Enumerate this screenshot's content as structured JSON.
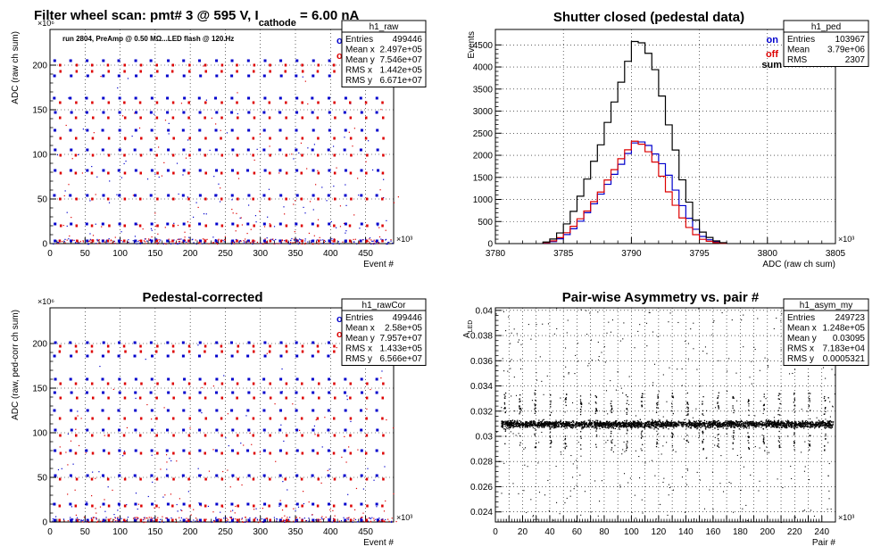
{
  "panels": {
    "tl": {
      "title_parts": {
        "a": "Filter wheel scan: pmt#   3 @   595 V, I",
        "sub": "cathode",
        "b": " = 6.00 nA"
      },
      "note": "run 2804, PreAmp @ 0.50 MΩ...LED flash @  120.Hz",
      "legend": {
        "on": "on",
        "off": "off"
      },
      "stats": {
        "name": "h1_raw",
        "rows": [
          [
            "Entries",
            "499446"
          ],
          [
            "Mean x",
            "2.497e+05"
          ],
          [
            "Mean y",
            "7.546e+07"
          ],
          [
            "RMS x",
            "1.442e+05"
          ],
          [
            "RMS y",
            "6.671e+07"
          ]
        ]
      }
    },
    "tr": {
      "title": "Shutter closed (pedestal data)",
      "legend": {
        "on": "on",
        "off": "off",
        "sum": "sum"
      },
      "stats": {
        "name": "h1_ped",
        "rows": [
          [
            "Entries",
            "103967"
          ],
          [
            "Mean",
            "3.79e+06"
          ],
          [
            "RMS",
            "2307"
          ]
        ]
      }
    },
    "bl": {
      "title": "Pedestal-corrected",
      "legend": {
        "on": "on",
        "off": "off"
      },
      "stats": {
        "name": "h1_rawCor",
        "rows": [
          [
            "Entries",
            "499446"
          ],
          [
            "Mean x",
            "2.58e+05"
          ],
          [
            "Mean y",
            "7.957e+07"
          ],
          [
            "RMS x",
            "1.433e+05"
          ],
          [
            "RMS y",
            "6.566e+07"
          ]
        ]
      }
    },
    "br": {
      "title": "Pair-wise Asymmetry vs. pair #",
      "stats": {
        "name": "h1_asym_my",
        "rows": [
          [
            "Entries",
            "249723"
          ],
          [
            "Mean x",
            "1.248e+05"
          ],
          [
            "Mean y",
            "0.03095"
          ],
          [
            "RMS x",
            "7.183e+04"
          ],
          [
            "RMS y",
            "0.0005321"
          ]
        ]
      }
    }
  },
  "colors": {
    "on": "#0000cc",
    "off": "#dd0000",
    "sum": "#000000",
    "grid": "#000000"
  },
  "chart_data": [
    {
      "type": "scatter",
      "id": "tl",
      "title": "Filter wheel scan: pmt#   3 @   595 V, I cathode = 6.00 nA",
      "xlabel": "Event #",
      "x_exponent": "×10³",
      "ylabel": "ADC (raw ch sum)",
      "y_exponent": "×10⁶",
      "xlim": [
        0,
        490
      ],
      "ylim": [
        0,
        240
      ],
      "x_ticks": [
        0,
        50,
        100,
        150,
        200,
        250,
        300,
        350,
        400,
        450
      ],
      "y_ticks": [
        0,
        50,
        100,
        150,
        200
      ],
      "grid": true,
      "series": [
        {
          "name": "on",
          "levels": [
            3,
            22,
            54,
            82,
            105,
            127,
            147,
            163,
            188,
            205
          ]
        },
        {
          "name": "off",
          "levels": [
            3,
            20,
            50,
            79,
            99,
            118,
            141,
            158,
            193,
            200
          ]
        }
      ],
      "period": 23
    },
    {
      "type": "line",
      "id": "tr",
      "title": "Shutter closed (pedestal data)",
      "xlabel": "ADC (raw ch sum)",
      "x_exponent": "×10³",
      "ylabel": "Events",
      "xlim": [
        3780,
        3805
      ],
      "ylim": [
        0,
        4850
      ],
      "x_ticks": [
        3780,
        3785,
        3790,
        3795,
        3800,
        3805
      ],
      "y_ticks": [
        0,
        500,
        1000,
        1500,
        2000,
        2500,
        3000,
        3500,
        4000,
        4500
      ],
      "grid": true,
      "series": [
        {
          "name": "on",
          "x": [
            3783.5,
            3784.5,
            3785.5,
            3786.5,
            3787.5,
            3788.5,
            3789.5,
            3790.3,
            3791,
            3792,
            3793,
            3794,
            3795,
            3796,
            3797
          ],
          "y": [
            0,
            60,
            250,
            600,
            1000,
            1450,
            1900,
            2300,
            2300,
            1950,
            1400,
            700,
            200,
            50,
            0
          ]
        },
        {
          "name": "off",
          "x": [
            3783.5,
            3784.5,
            3785.5,
            3786.5,
            3787.5,
            3788.5,
            3789.5,
            3790.3,
            3791,
            3792,
            3793,
            3794,
            3795,
            3796,
            3797
          ],
          "y": [
            0,
            80,
            300,
            650,
            1050,
            1550,
            2050,
            2350,
            2200,
            1700,
            1000,
            450,
            120,
            30,
            0
          ]
        },
        {
          "name": "sum",
          "x": [
            3783.5,
            3784.5,
            3785.5,
            3786.5,
            3787.5,
            3788.5,
            3789.5,
            3790.3,
            3791,
            3792,
            3793,
            3794,
            3795,
            3796,
            3797
          ],
          "y": [
            0,
            140,
            550,
            1250,
            2050,
            3000,
            3950,
            4650,
            4500,
            3650,
            2400,
            1150,
            320,
            80,
            0
          ]
        }
      ]
    },
    {
      "type": "scatter",
      "id": "bl",
      "title": "Pedestal-corrected",
      "xlabel": "Event #",
      "x_exponent": "×10³",
      "ylabel": "ADC (raw, ped-corr ch sum)",
      "y_exponent": "×10⁶",
      "xlim": [
        0,
        490
      ],
      "ylim": [
        0,
        240
      ],
      "x_ticks": [
        0,
        50,
        100,
        150,
        200,
        250,
        300,
        350,
        400,
        450
      ],
      "y_ticks": [
        0,
        50,
        100,
        150,
        200
      ],
      "grid": true,
      "series": [
        {
          "name": "on",
          "levels": [
            2,
            20,
            52,
            80,
            103,
            125,
            145,
            160,
            186,
            201
          ]
        },
        {
          "name": "off",
          "levels": [
            2,
            18,
            48,
            77,
            97,
            116,
            139,
            155,
            191,
            197
          ]
        }
      ],
      "period": 23
    },
    {
      "type": "scatter",
      "id": "br",
      "title": "Pair-wise Asymmetry vs. pair #",
      "xlabel": "Pair #",
      "x_exponent": "×10³",
      "ylabel": "A",
      "ylabel_sub": "LED",
      "xlim": [
        0,
        250
      ],
      "ylim": [
        0.0232,
        0.0402
      ],
      "x_ticks": [
        0,
        10,
        20,
        30,
        40,
        50,
        60,
        70,
        80,
        90,
        100,
        110,
        120,
        130,
        140,
        150,
        160,
        170,
        180,
        190,
        200,
        210,
        220,
        230,
        240
      ],
      "x_ticklabels": [
        0,
        20,
        40,
        60,
        80,
        100,
        120,
        140,
        160,
        180,
        200,
        220,
        240
      ],
      "y_ticks": [
        0.024,
        0.026,
        0.028,
        0.03,
        0.032,
        0.034,
        0.036,
        0.038,
        0.04
      ],
      "band": [
        0.0302,
        0.0318
      ],
      "grid": true
    }
  ]
}
